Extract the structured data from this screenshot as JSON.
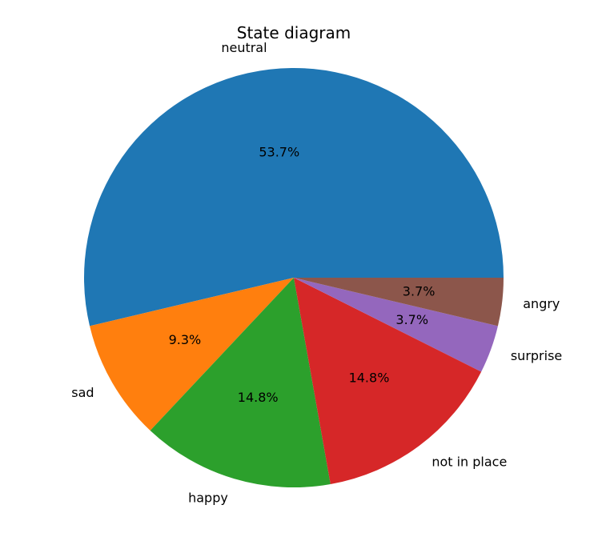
{
  "chart_data": {
    "type": "pie",
    "title": "State diagram",
    "start_angle_deg": 0,
    "direction": "counterclockwise",
    "slices": [
      {
        "label": "neutral",
        "value": 53.7,
        "pct_label": "53.7%",
        "color": "#1f77b4"
      },
      {
        "label": "sad",
        "value": 9.3,
        "pct_label": "9.3%",
        "color": "#ff7f0e"
      },
      {
        "label": "happy",
        "value": 14.8,
        "pct_label": "14.8%",
        "color": "#2ca02c"
      },
      {
        "label": "not in place",
        "value": 14.8,
        "pct_label": "14.8%",
        "color": "#d62728"
      },
      {
        "label": "surprise",
        "value": 3.7,
        "pct_label": "3.7%",
        "color": "#9467bd"
      },
      {
        "label": "angry",
        "value": 3.7,
        "pct_label": "3.7%",
        "color": "#8c564b"
      }
    ]
  }
}
